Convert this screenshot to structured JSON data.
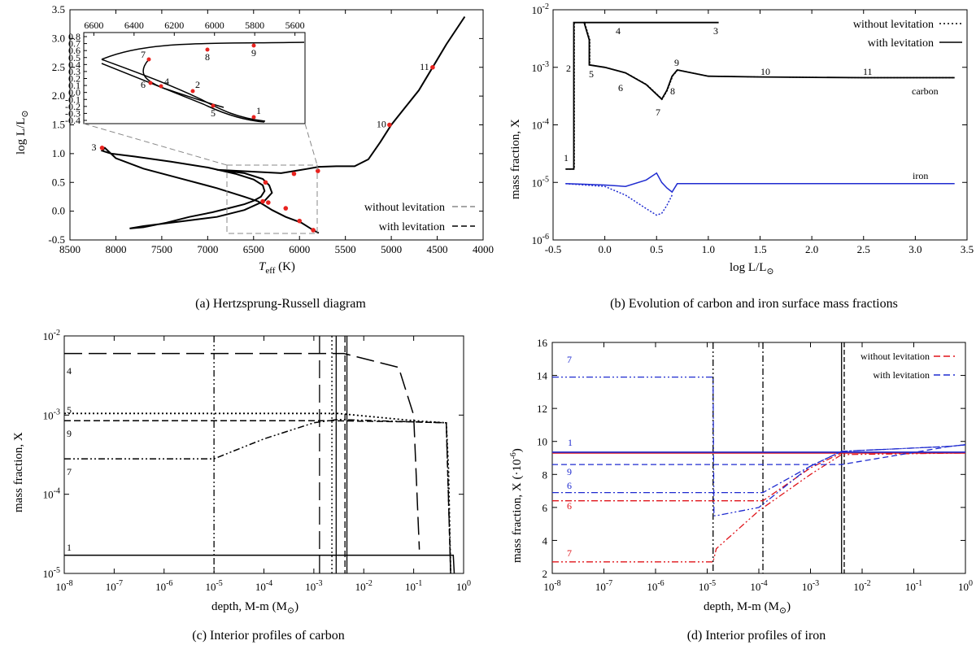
{
  "colors": {
    "black": "#000000",
    "blue": "#1f2bd0",
    "red": "#e0141a",
    "marker": "#e8231f",
    "grey": "#888888"
  },
  "panels": {
    "a": {
      "caption": "(a)  Hertzsprung-Russell diagram",
      "xlabel": "T",
      "xlabel_sub": "eff",
      "xlabel_unit": " (K)",
      "ylabel": "log L/L",
      "xticks": [
        "8500",
        "8000",
        "7500",
        "7000",
        "6500",
        "6000",
        "5500",
        "5000",
        "4500",
        "4000"
      ],
      "yticks": [
        "-0.5",
        "0.0",
        "0.5",
        "1.0",
        "1.5",
        "2.0",
        "2.5",
        "3.0",
        "3.5"
      ],
      "inset_xticks": [
        "6600",
        "6400",
        "6200",
        "6000",
        "5800",
        "5600"
      ],
      "inset_yticks": [
        "0.8",
        "0.7",
        "0.6",
        "0.5",
        "0.4",
        "0.3",
        "0.2",
        "0.1",
        "0.0",
        "-0.1",
        "-0.2",
        "-0.3",
        "-0.4"
      ],
      "legend": [
        "without levitation",
        "with levitation"
      ]
    },
    "b": {
      "caption": "(b)  Evolution of carbon and iron surface mass fractions",
      "xlabel": "log L/L",
      "ylabel": "mass fraction, X",
      "xticks": [
        "-0.5",
        "0.0",
        "0.5",
        "1.0",
        "1.5",
        "2.0",
        "2.5",
        "3.0",
        "3.5"
      ],
      "yticks": [
        {
          "b": "10",
          "e": "-2"
        },
        {
          "b": "10",
          "e": "-3"
        },
        {
          "b": "10",
          "e": "-4"
        },
        {
          "b": "10",
          "e": "-5"
        },
        {
          "b": "10",
          "e": "-6"
        }
      ],
      "legend": [
        "without levitation",
        "with levitation"
      ],
      "species": [
        "carbon",
        "iron"
      ]
    },
    "c": {
      "caption": "(c)  Interior profiles of carbon",
      "xlabel": "depth, M-m (M",
      "ylabel": "mass fraction, X",
      "xticks": [
        {
          "b": "10",
          "e": "-8"
        },
        {
          "b": "10",
          "e": "-7"
        },
        {
          "b": "10",
          "e": "-6"
        },
        {
          "b": "10",
          "e": "-5"
        },
        {
          "b": "10",
          "e": "-4"
        },
        {
          "b": "10",
          "e": "-3"
        },
        {
          "b": "10",
          "e": "-2"
        },
        {
          "b": "10",
          "e": "-1"
        },
        {
          "b": "10",
          "e": "0"
        }
      ],
      "yticks": [
        {
          "b": "10",
          "e": "-2"
        },
        {
          "b": "10",
          "e": "-3"
        },
        {
          "b": "10",
          "e": "-4"
        },
        {
          "b": "10",
          "e": "-5"
        }
      ],
      "labels": [
        "4",
        "5",
        "9",
        "7",
        "1"
      ]
    },
    "d": {
      "caption": "(d)  Interior profiles of iron",
      "xlabel": "depth, M-m (M",
      "ylabel": "mass fraction, X (·10",
      "ylabel_exp": "-6",
      "xticks": [
        {
          "b": "10",
          "e": "-8"
        },
        {
          "b": "10",
          "e": "-7"
        },
        {
          "b": "10",
          "e": "-6"
        },
        {
          "b": "10",
          "e": "-5"
        },
        {
          "b": "10",
          "e": "-4"
        },
        {
          "b": "10",
          "e": "-3"
        },
        {
          "b": "10",
          "e": "-2"
        },
        {
          "b": "10",
          "e": "-1"
        },
        {
          "b": "10",
          "e": "0"
        }
      ],
      "yticks": [
        "16",
        "14",
        "12",
        "10",
        "8",
        "6",
        "4",
        "2"
      ],
      "legend": [
        "without levitation",
        "with levitation"
      ],
      "labels_blue": [
        "7",
        "1",
        "9",
        "6"
      ],
      "labels_red": [
        "6",
        "7"
      ]
    }
  },
  "chart_data": [
    {
      "type": "line",
      "title": "Hertzsprung-Russell diagram",
      "xlabel": "Teff (K)",
      "ylabel": "log L/Lsun",
      "xlim": [
        8500,
        4000
      ],
      "ylim": [
        -0.5,
        3.5
      ],
      "series": [
        {
          "name": "with levitation",
          "x": [
            5790,
            5850,
            5980,
            6150,
            6300,
            6450,
            6600,
            6900,
            7300,
            7700,
            8000,
            8120,
            8150,
            8050,
            7800,
            7400,
            7000,
            6700,
            6500,
            6400,
            6380,
            6420,
            6500,
            6600,
            6750,
            6950,
            7200,
            7450,
            7700,
            7850,
            7700,
            7300,
            6900,
            6600,
            6380,
            6300,
            6330,
            6400,
            6600,
            6900,
            6200,
            6050,
            5900,
            5790,
            5600,
            5400,
            5250,
            5120,
            5000,
            4850,
            4700,
            4550,
            4400,
            4200
          ],
          "y": [
            -0.38,
            -0.33,
            -0.2,
            -0.1,
            0.02,
            0.17,
            0.25,
            0.4,
            0.57,
            0.74,
            0.92,
            1.1,
            1.05,
            1.0,
            0.95,
            0.86,
            0.76,
            0.65,
            0.55,
            0.45,
            0.35,
            0.25,
            0.18,
            0.12,
            0.06,
            -0.02,
            -0.1,
            -0.2,
            -0.28,
            -0.3,
            -0.26,
            -0.18,
            -0.1,
            0.02,
            0.18,
            0.32,
            0.45,
            0.56,
            0.66,
            0.72,
            0.66,
            0.7,
            0.74,
            0.77,
            0.78,
            0.78,
            0.9,
            1.2,
            1.5,
            1.8,
            2.1,
            2.5,
            2.9,
            3.38
          ]
        },
        {
          "name": "markers",
          "labels": [
            "1",
            "2",
            "3",
            "4",
            "5",
            "6",
            "7",
            "8",
            "9",
            "10",
            "11"
          ],
          "x": [
            5850,
            6150,
            8150,
            6340,
            6000,
            6400,
            6370,
            6060,
            5800,
            5020,
            4550
          ],
          "y": [
            -0.33,
            0.05,
            1.1,
            0.15,
            -0.17,
            0.17,
            0.5,
            0.65,
            0.7,
            1.5,
            2.5
          ]
        }
      ]
    },
    {
      "type": "line",
      "title": "Evolution of carbon and iron surface mass fractions",
      "xlabel": "log L/Lsun",
      "ylabel": "mass fraction, X",
      "xlim": [
        -0.5,
        3.5
      ],
      "ylim": [
        1e-06,
        0.01
      ],
      "yscale": "log",
      "series": [
        {
          "name": "carbon with levitation",
          "x": [
            -0.38,
            -0.3,
            -0.3,
            -0.2,
            -0.15,
            -0.15,
            0.0,
            0.2,
            0.4,
            0.55,
            0.6,
            0.65,
            0.7,
            1.0,
            1.5,
            2.0,
            2.5,
            3.0,
            3.38
          ],
          "y": [
            1.7e-05,
            1.7e-05,
            0.006,
            0.006,
            0.003,
            0.0011,
            0.001,
            0.0008,
            0.0005,
            0.00028,
            0.0004,
            0.0007,
            0.0009,
            0.0007,
            0.00068,
            0.00067,
            0.00066,
            0.00066,
            0.00066
          ]
        },
        {
          "name": "carbon upper branch",
          "x": [
            -0.2,
            0.4,
            1.1
          ],
          "y": [
            0.006,
            0.006,
            0.006
          ]
        },
        {
          "name": "iron with levitation",
          "x": [
            -0.38,
            -0.2,
            0.0,
            0.2,
            0.4,
            0.5,
            0.55,
            0.6,
            0.65,
            0.7,
            1.0,
            2.0,
            3.38
          ],
          "y": [
            9.5e-06,
            9.3e-06,
            9e-06,
            8.5e-06,
            1.1e-05,
            1.45e-05,
            1e-05,
            8e-06,
            6.8e-06,
            9.5e-06,
            9.5e-06,
            9.5e-06,
            9.5e-06
          ]
        },
        {
          "name": "iron without levitation",
          "x": [
            -0.38,
            0.0,
            0.2,
            0.4,
            0.5,
            0.55,
            0.6,
            0.65
          ],
          "y": [
            9.5e-06,
            8.5e-06,
            6e-06,
            3.5e-06,
            2.7e-06,
            2.9e-06,
            4e-06,
            6e-06
          ]
        }
      ],
      "annotations": [
        "1",
        "2",
        "3",
        "4",
        "5",
        "6",
        "7",
        "8",
        "9",
        "10",
        "11",
        "carbon",
        "iron"
      ]
    },
    {
      "type": "line",
      "title": "Interior profiles of carbon",
      "xlabel": "depth, M-m (Msun)",
      "ylabel": "mass fraction, X",
      "xlim": [
        1e-08,
        1
      ],
      "ylim": [
        1e-05,
        0.01
      ],
      "xscale": "log",
      "yscale": "log",
      "series": [
        {
          "name": "4",
          "x": [
            1e-08,
            0.001,
            0.004,
            0.05,
            0.1,
            0.13
          ],
          "y": [
            0.006,
            0.006,
            0.006,
            0.004,
            0.001,
            2e-05
          ]
        },
        {
          "name": "5",
          "x": [
            1e-08,
            0.003,
            0.1,
            0.45,
            0.5,
            0.55
          ],
          "y": [
            0.00105,
            0.00105,
            0.00085,
            0.0008,
            0.0002,
            1e-05
          ]
        },
        {
          "name": "9",
          "x": [
            1e-08,
            0.002,
            0.1,
            0.45,
            0.55
          ],
          "y": [
            0.00085,
            0.00085,
            0.00082,
            0.0008,
            1e-05
          ]
        },
        {
          "name": "7",
          "x": [
            1e-08,
            1e-05,
            0.0001,
            0.001,
            0.003,
            0.1,
            0.45,
            0.55
          ],
          "y": [
            0.00028,
            0.00028,
            0.0005,
            0.0008,
            0.00088,
            0.00082,
            0.0008,
            1e-05
          ]
        },
        {
          "name": "1",
          "x": [
            1e-08,
            0.5,
            0.62,
            0.65
          ],
          "y": [
            1.7e-05,
            1.7e-05,
            1.7e-05,
            1e-05
          ]
        }
      ],
      "vlines": [
        1e-05,
        0.0013,
        0.0023,
        0.0028,
        0.0042,
        0.0046
      ]
    },
    {
      "type": "line",
      "title": "Interior profiles of iron",
      "xlabel": "depth, M-m (Msun)",
      "ylabel": "mass fraction, X (1e-6)",
      "xlim": [
        1e-08,
        1
      ],
      "ylim": [
        2,
        16
      ],
      "xscale": "log",
      "series": [
        {
          "name": "7 with levitation",
          "x": [
            1e-08,
            1.3e-05,
            1.35e-05,
            1.5e-05,
            0.0001,
            0.001,
            0.004,
            0.5,
            1
          ],
          "y": [
            13.9,
            13.9,
            5.5,
            5.5,
            6.0,
            8.5,
            9.4,
            9.7,
            9.8
          ]
        },
        {
          "name": "1 with levitation",
          "x": [
            1e-08,
            1
          ],
          "y": [
            9.35,
            9.35
          ]
        },
        {
          "name": "9 with levitation",
          "x": [
            1e-08,
            0.004,
            0.5,
            1
          ],
          "y": [
            8.6,
            8.6,
            9.7,
            9.8
          ]
        },
        {
          "name": "6 with levitation",
          "x": [
            1e-08,
            0.00012,
            0.001,
            0.004,
            0.5,
            1
          ],
          "y": [
            6.9,
            6.9,
            8.5,
            9.4,
            9.7,
            9.8
          ]
        },
        {
          "name": "1 without levitation",
          "x": [
            1e-08,
            1
          ],
          "y": [
            9.3,
            9.3
          ]
        },
        {
          "name": "6 without levitation",
          "x": [
            1e-08,
            0.00012,
            0.001,
            0.004,
            1
          ],
          "y": [
            6.4,
            6.4,
            8.4,
            9.3,
            9.3
          ]
        },
        {
          "name": "7 without levitation",
          "x": [
            1e-08,
            1.3e-05,
            1.5e-05,
            0.0001,
            0.001,
            0.004,
            1
          ],
          "y": [
            2.7,
            2.7,
            3.5,
            5.8,
            8.0,
            9.2,
            9.3
          ]
        }
      ],
      "vlines": [
        1.3e-05,
        0.00012,
        0.004,
        0.0045
      ]
    }
  ]
}
